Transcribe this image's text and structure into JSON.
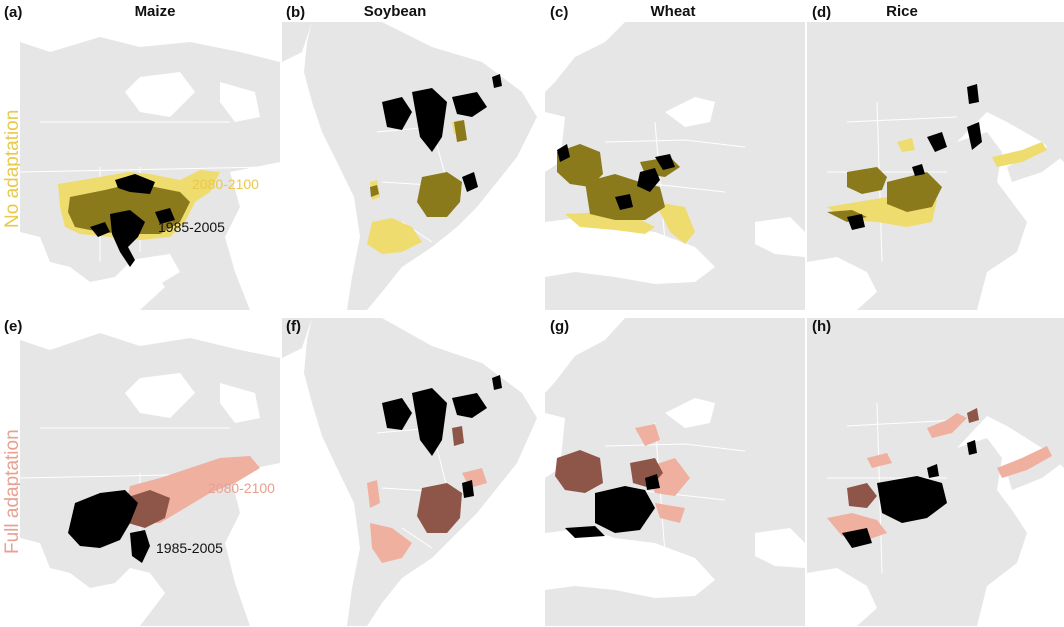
{
  "columns": [
    {
      "letter_top": "(a)",
      "letter_bottom": "(e)",
      "crop": "Maize"
    },
    {
      "letter_top": "(b)",
      "letter_bottom": "(f)",
      "crop": "Soybean"
    },
    {
      "letter_top": "(c)",
      "letter_bottom": "(g)",
      "crop": "Wheat"
    },
    {
      "letter_top": "(d)",
      "letter_bottom": "(h)",
      "crop": "Rice"
    }
  ],
  "rows": [
    {
      "label": "No adaptation",
      "color": "#e8c94a"
    },
    {
      "label": "Full adaptation",
      "color": "#e8a090"
    }
  ],
  "legend": {
    "future_period": "2080-2100",
    "baseline_period": "1985-2005",
    "baseline_color": "#000000",
    "no_adaptation": {
      "future_color": "#efdc6e",
      "overlap_color": "#8a7a1c"
    },
    "full_adaptation": {
      "future_color": "#efb0a0",
      "overlap_color": "#8e5648"
    }
  },
  "map_colors": {
    "land": "#e6e6e6",
    "ocean": "#ffffff",
    "borders": "#ffffff"
  }
}
